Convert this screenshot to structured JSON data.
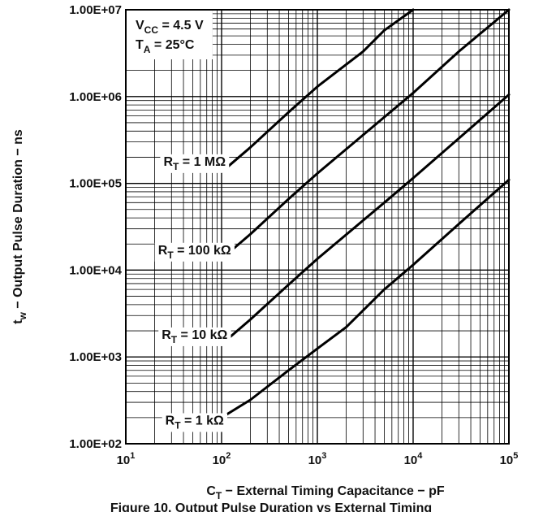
{
  "chart_data": {
    "type": "line",
    "title": "",
    "caption": "Figure 10. Output Pulse Duration vs External Timing",
    "xlabel": {
      "main": "C",
      "sub": "T",
      "rest": " − External Timing Capacitance − pF"
    },
    "ylabel": {
      "main": "t",
      "sub": "w",
      "rest": " − Output Pulse Duration − ns"
    },
    "x_scale": "log",
    "y_scale": "log",
    "xlim": [
      10,
      100000
    ],
    "ylim": [
      100,
      10000000
    ],
    "grid": true,
    "x_ticks": [
      {
        "value": 10,
        "base": "10",
        "exp": "1"
      },
      {
        "value": 100,
        "base": "10",
        "exp": "2"
      },
      {
        "value": 1000,
        "base": "10",
        "exp": "3"
      },
      {
        "value": 10000,
        "base": "10",
        "exp": "4"
      },
      {
        "value": 100000,
        "base": "10",
        "exp": "5"
      }
    ],
    "y_ticks": [
      {
        "value": 100,
        "label": "1.00E+02"
      },
      {
        "value": 1000,
        "label": "1.00E+03"
      },
      {
        "value": 10000,
        "label": "1.00E+04"
      },
      {
        "value": 100000,
        "label": "1.00E+05"
      },
      {
        "value": 1000000,
        "label": "1.00E+06"
      },
      {
        "value": 10000000,
        "label": "1.00E+07"
      }
    ],
    "conditions": [
      {
        "main": "V",
        "sub": "CC",
        "rest": " = 4.5 V"
      },
      {
        "main": "T",
        "sub": "A",
        "rest": " = 25°C"
      }
    ],
    "series": [
      {
        "label": {
          "main": "R",
          "sub": "T",
          "rest": " = 1 MΩ"
        },
        "label_at": [
          200,
          178000
        ],
        "points": [
          [
            100,
            135000
          ],
          [
            200,
            260000
          ],
          [
            500,
            660000
          ],
          [
            1000,
            1300000
          ],
          [
            3000,
            3300000
          ],
          [
            5000,
            5800000
          ],
          [
            10000,
            10000000
          ]
        ]
      },
      {
        "label": {
          "main": "R",
          "sub": "T",
          "rest": " = 100 kΩ"
        },
        "label_at": [
          200,
          17000
        ],
        "points": [
          [
            100,
            13500
          ],
          [
            200,
            26000
          ],
          [
            500,
            66000
          ],
          [
            1000,
            130000
          ],
          [
            5000,
            580000
          ],
          [
            10000,
            1100000
          ],
          [
            30000,
            3300000
          ],
          [
            100000,
            10000000
          ]
        ]
      },
      {
        "label": {
          "main": "R",
          "sub": "T",
          "rest": " = 10 kΩ"
        },
        "label_at": [
          200,
          1800
        ],
        "points": [
          [
            100,
            1400
          ],
          [
            200,
            2700
          ],
          [
            500,
            6800
          ],
          [
            1000,
            13500
          ],
          [
            5000,
            60000
          ],
          [
            10000,
            115000
          ],
          [
            30000,
            330000
          ],
          [
            100000,
            1050000
          ]
        ]
      },
      {
        "label": {
          "main": "R",
          "sub": "T",
          "rest": " = 1 kΩ"
        },
        "label_at": [
          200,
          185
        ],
        "points": [
          [
            100,
            200
          ],
          [
            200,
            320
          ],
          [
            500,
            700
          ],
          [
            1000,
            1250
          ],
          [
            2000,
            2200
          ],
          [
            5000,
            6000
          ],
          [
            10000,
            11500
          ],
          [
            30000,
            34000
          ],
          [
            100000,
            110000
          ]
        ]
      }
    ]
  }
}
